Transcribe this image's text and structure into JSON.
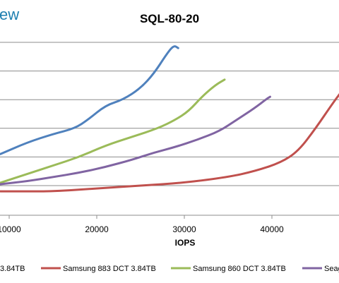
{
  "branding": {
    "logo_text": "ew"
  },
  "chart_data": {
    "type": "line",
    "title": "SQL-80-20",
    "xlabel": "IOPS",
    "ylabel": "",
    "xlim": [
      9000,
      48000
    ],
    "ylim": [
      0,
      6
    ],
    "x_ticks": [
      10000,
      20000,
      30000,
      40000
    ],
    "x_tick_labels": [
      "10000",
      "20000",
      "30000",
      "40000"
    ],
    "grid": "horizontal",
    "legend_position": "bottom",
    "series": [
      {
        "name": "3.84TB",
        "color": "#4f81bd",
        "points": [
          [
            9000,
            1.1
          ],
          [
            12000,
            1.5
          ],
          [
            15000,
            1.8
          ],
          [
            17500,
            2.0
          ],
          [
            19000,
            2.3
          ],
          [
            21000,
            2.8
          ],
          [
            23000,
            3.0
          ],
          [
            25000,
            3.4
          ],
          [
            26500,
            3.9
          ],
          [
            28000,
            4.6
          ],
          [
            28800,
            4.9
          ],
          [
            29300,
            4.8
          ]
        ]
      },
      {
        "name": "Samsung 883 DCT 3.84TB",
        "color": "#c0504d",
        "points": [
          [
            9000,
            -0.2
          ],
          [
            12000,
            -0.2
          ],
          [
            15000,
            -0.2
          ],
          [
            20000,
            -0.1
          ],
          [
            25000,
            0.0
          ],
          [
            30000,
            0.1
          ],
          [
            35000,
            0.3
          ],
          [
            38000,
            0.5
          ],
          [
            41000,
            0.8
          ],
          [
            43000,
            1.2
          ],
          [
            45000,
            2.0
          ],
          [
            47000,
            2.9
          ],
          [
            48000,
            3.3
          ]
        ]
      },
      {
        "name": "Samsung 860 DCT 3.84TB",
        "color": "#9bbb59",
        "points": [
          [
            9000,
            0.1
          ],
          [
            12000,
            0.4
          ],
          [
            15000,
            0.7
          ],
          [
            18000,
            1.0
          ],
          [
            21000,
            1.4
          ],
          [
            24000,
            1.7
          ],
          [
            27000,
            2.0
          ],
          [
            29000,
            2.3
          ],
          [
            30500,
            2.6
          ],
          [
            32000,
            3.1
          ],
          [
            33500,
            3.5
          ],
          [
            34600,
            3.7
          ]
        ]
      },
      {
        "name": "Seag",
        "color": "#8064a2",
        "points": [
          [
            9000,
            0.05
          ],
          [
            12000,
            0.15
          ],
          [
            15000,
            0.3
          ],
          [
            18000,
            0.45
          ],
          [
            21000,
            0.65
          ],
          [
            24000,
            0.9
          ],
          [
            26500,
            1.15
          ],
          [
            29000,
            1.35
          ],
          [
            31500,
            1.6
          ],
          [
            34000,
            1.9
          ],
          [
            36000,
            2.3
          ],
          [
            38000,
            2.7
          ],
          [
            39500,
            3.05
          ],
          [
            39800,
            3.1
          ]
        ]
      }
    ]
  }
}
